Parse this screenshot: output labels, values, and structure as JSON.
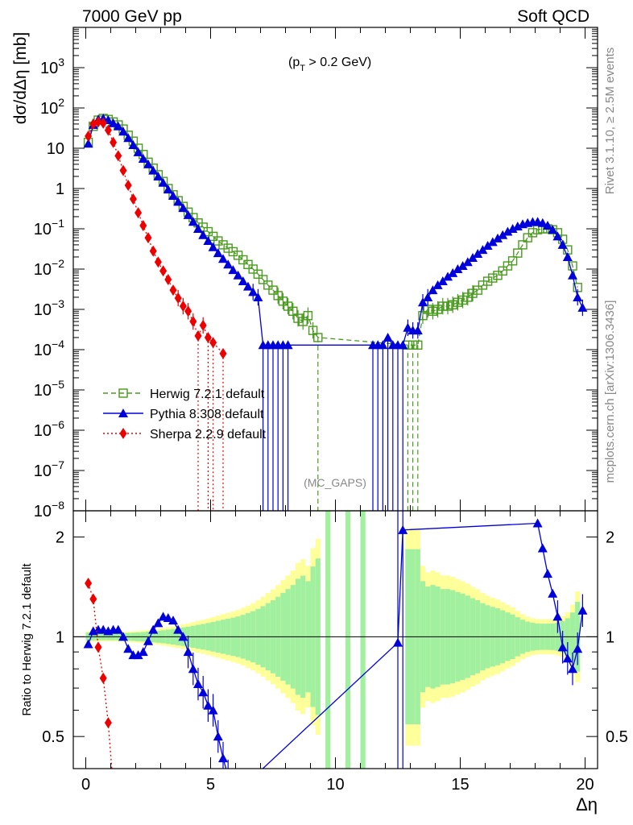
{
  "header": {
    "left": "7000 GeV pp",
    "right": "Soft QCD"
  },
  "side_labels": {
    "rivet": "Rivet 3.1.10, ≥ 2.5M events",
    "mcplots": "mcplots.cern.ch [arXiv:1306.3436]"
  },
  "annotations": {
    "cut_main": "(p",
    "cut_sub": "T",
    "cut_rest": " > 0.2 GeV)",
    "mc_gaps": "(MC_GAPS)"
  },
  "x_axis": {
    "label": "Δη",
    "ticks": [
      "0",
      "5",
      "10",
      "15",
      "20"
    ]
  },
  "top_y_axis": {
    "label": "dσ/dΔη [mb]",
    "ticks": [
      {
        "base": "10",
        "exp": "3"
      },
      {
        "base": "10",
        "exp": "2"
      },
      {
        "base": "10",
        "exp": ""
      },
      {
        "base": "1",
        "exp": ""
      },
      {
        "base": "10",
        "exp": "−1"
      },
      {
        "base": "10",
        "exp": "−2"
      },
      {
        "base": "10",
        "exp": "−3"
      },
      {
        "base": "10",
        "exp": "−4"
      },
      {
        "base": "10",
        "exp": "−5"
      },
      {
        "base": "10",
        "exp": "−6"
      },
      {
        "base": "10",
        "exp": "−7"
      },
      {
        "base": "10",
        "exp": "−8"
      }
    ]
  },
  "ratio_y_axis": {
    "label": "Ratio to Herwig 7.2.1 default",
    "ticks": [
      "2",
      "1",
      "0.5"
    ]
  },
  "legend": [
    {
      "name": "Herwig 7.2.1 default",
      "color": "#4a9a1f",
      "marker": "open-square",
      "line": "dashed"
    },
    {
      "name": "Pythia 8.308 default",
      "color": "#0000dd",
      "marker": "filled-triangle",
      "line": "solid"
    },
    {
      "name": "Sherpa 2.2.9 default",
      "color": "#ee0000",
      "marker": "filled-diamond",
      "line": "dotted"
    }
  ],
  "colors": {
    "herwig": "#4a9a1f",
    "pythia": "#0000dd",
    "sherpa": "#ee0000",
    "band_inner": "#a0f0a0",
    "band_outer": "#ffff9a",
    "grey_text": "#888888"
  },
  "chart_data": [
    {
      "type": "line",
      "panel": "main",
      "xlabel": "Δη",
      "ylabel": "dσ/dΔη [mb]",
      "xlim": [
        -0.5,
        20.5
      ],
      "ylim": [
        1e-08,
        10000
      ],
      "log_y": true,
      "legend_position": "lower-left",
      "series": [
        {
          "name": "Herwig 7.2.1 default",
          "points": [
            [
              0.1,
              14
            ],
            [
              0.3,
              35
            ],
            [
              0.5,
              50
            ],
            [
              0.7,
              55
            ],
            [
              0.9,
              52
            ],
            [
              1.1,
              45
            ],
            [
              1.3,
              38
            ],
            [
              1.5,
              30
            ],
            [
              1.7,
              21
            ],
            [
              1.9,
              15
            ],
            [
              2.1,
              10
            ],
            [
              2.3,
              7
            ],
            [
              2.5,
              4.5
            ],
            [
              2.7,
              3.2
            ],
            [
              2.9,
              2.2
            ],
            [
              3.1,
              1.5
            ],
            [
              3.3,
              1.0
            ],
            [
              3.5,
              0.7
            ],
            [
              3.7,
              0.5
            ],
            [
              3.9,
              0.36
            ],
            [
              4.1,
              0.26
            ],
            [
              4.3,
              0.19
            ],
            [
              4.5,
              0.14
            ],
            [
              4.7,
              0.11
            ],
            [
              4.9,
              0.085
            ],
            [
              5.1,
              0.065
            ],
            [
              5.3,
              0.05
            ],
            [
              5.5,
              0.04
            ],
            [
              5.7,
              0.033
            ],
            [
              5.9,
              0.027
            ],
            [
              6.1,
              0.022
            ],
            [
              6.3,
              0.017
            ],
            [
              6.5,
              0.013
            ],
            [
              6.7,
              0.01
            ],
            [
              6.9,
              0.0075
            ],
            [
              7.1,
              0.0055
            ],
            [
              7.3,
              0.004
            ],
            [
              7.5,
              0.003
            ],
            [
              7.7,
              0.0022
            ],
            [
              7.9,
              0.0016
            ],
            [
              8.1,
              0.0012
            ],
            [
              8.3,
              0.0009
            ],
            [
              8.5,
              0.0006
            ],
            [
              8.7,
              0.0005
            ],
            [
              8.9,
              0.0007
            ],
            [
              9.1,
              0.0003
            ],
            [
              9.3,
              0.0002
            ],
            [
              12.9,
              0.00013
            ],
            [
              13.1,
              0.00013
            ],
            [
              13.3,
              0.00013
            ],
            [
              13.5,
              0.0007
            ],
            [
              13.7,
              0.001
            ],
            [
              13.9,
              0.0009
            ],
            [
              14.1,
              0.001
            ],
            [
              14.3,
              0.0012
            ],
            [
              14.5,
              0.0012
            ],
            [
              14.7,
              0.0013
            ],
            [
              14.9,
              0.0015
            ],
            [
              15.1,
              0.0017
            ],
            [
              15.3,
              0.002
            ],
            [
              15.5,
              0.0025
            ],
            [
              15.7,
              0.003
            ],
            [
              15.9,
              0.004
            ],
            [
              16.1,
              0.005
            ],
            [
              16.3,
              0.006
            ],
            [
              16.5,
              0.007
            ],
            [
              16.7,
              0.009
            ],
            [
              16.9,
              0.012
            ],
            [
              17.1,
              0.016
            ],
            [
              17.3,
              0.025
            ],
            [
              17.5,
              0.04
            ],
            [
              17.7,
              0.06
            ],
            [
              17.9,
              0.08
            ],
            [
              18.1,
              0.095
            ],
            [
              18.3,
              0.1
            ],
            [
              18.5,
              0.1
            ],
            [
              18.7,
              0.095
            ],
            [
              18.9,
              0.08
            ],
            [
              19.1,
              0.055
            ],
            [
              19.3,
              0.03
            ],
            [
              19.5,
              0.012
            ],
            [
              19.7,
              0.0035
            ]
          ]
        },
        {
          "name": "Pythia 8.308 default",
          "points": [
            [
              0.1,
              13
            ],
            [
              0.3,
              38
            ],
            [
              0.5,
              52
            ],
            [
              0.7,
              55
            ],
            [
              0.9,
              50
            ],
            [
              1.1,
              42
            ],
            [
              1.3,
              35
            ],
            [
              1.5,
              26
            ],
            [
              1.7,
              18
            ],
            [
              1.9,
              12
            ],
            [
              2.1,
              8
            ],
            [
              2.3,
              5.5
            ],
            [
              2.5,
              4
            ],
            [
              2.7,
              2.8
            ],
            [
              2.9,
              2.0
            ],
            [
              3.1,
              1.4
            ],
            [
              3.3,
              0.95
            ],
            [
              3.5,
              0.66
            ],
            [
              3.7,
              0.47
            ],
            [
              3.9,
              0.33
            ],
            [
              4.1,
              0.22
            ],
            [
              4.3,
              0.15
            ],
            [
              4.5,
              0.1
            ],
            [
              4.7,
              0.07
            ],
            [
              4.9,
              0.05
            ],
            [
              5.1,
              0.035
            ],
            [
              5.3,
              0.025
            ],
            [
              5.5,
              0.018
            ],
            [
              5.7,
              0.013
            ],
            [
              5.9,
              0.0095
            ],
            [
              6.1,
              0.007
            ],
            [
              6.3,
              0.005
            ],
            [
              6.5,
              0.0037
            ],
            [
              6.7,
              0.0027
            ],
            [
              6.9,
              0.002
            ],
            [
              7.1,
              0.00013
            ],
            [
              7.3,
              0.00013
            ],
            [
              7.5,
              0.00013
            ],
            [
              7.7,
              0.00013
            ],
            [
              7.9,
              0.00013
            ],
            [
              8.1,
              0.00013
            ],
            [
              11.5,
              0.00013
            ],
            [
              11.7,
              0.00013
            ],
            [
              11.9,
              0.00013
            ],
            [
              12.1,
              0.0002
            ],
            [
              12.3,
              0.00013
            ],
            [
              12.5,
              0.00013
            ],
            [
              12.7,
              0.00013
            ],
            [
              12.9,
              0.00035
            ],
            [
              13.1,
              0.0003
            ],
            [
              13.3,
              0.0003
            ],
            [
              13.5,
              0.0015
            ],
            [
              13.7,
              0.002
            ],
            [
              13.9,
              0.003
            ],
            [
              14.1,
              0.004
            ],
            [
              14.3,
              0.005
            ],
            [
              14.5,
              0.0065
            ],
            [
              14.7,
              0.008
            ],
            [
              14.9,
              0.01
            ],
            [
              15.1,
              0.012
            ],
            [
              15.3,
              0.015
            ],
            [
              15.5,
              0.019
            ],
            [
              15.7,
              0.024
            ],
            [
              15.9,
              0.03
            ],
            [
              16.1,
              0.038
            ],
            [
              16.3,
              0.047
            ],
            [
              16.5,
              0.058
            ],
            [
              16.7,
              0.07
            ],
            [
              16.9,
              0.085
            ],
            [
              17.1,
              0.1
            ],
            [
              17.3,
              0.115
            ],
            [
              17.5,
              0.13
            ],
            [
              17.7,
              0.14
            ],
            [
              17.9,
              0.148
            ],
            [
              18.1,
              0.15
            ],
            [
              18.3,
              0.14
            ],
            [
              18.5,
              0.12
            ],
            [
              18.7,
              0.095
            ],
            [
              18.9,
              0.065
            ],
            [
              19.1,
              0.04
            ],
            [
              19.3,
              0.02
            ],
            [
              19.5,
              0.007
            ],
            [
              19.7,
              0.002
            ],
            [
              19.9,
              0.0011
            ]
          ]
        },
        {
          "name": "Sherpa 2.2.9 default",
          "points": [
            [
              0.1,
              20
            ],
            [
              0.3,
              40
            ],
            [
              0.5,
              45
            ],
            [
              0.7,
              42
            ],
            [
              0.9,
              28
            ],
            [
              1.1,
              14
            ],
            [
              1.3,
              6.5
            ],
            [
              1.5,
              2.8
            ],
            [
              1.7,
              1.2
            ],
            [
              1.9,
              0.55
            ],
            [
              2.1,
              0.25
            ],
            [
              2.3,
              0.12
            ],
            [
              2.5,
              0.06
            ],
            [
              2.7,
              0.028
            ],
            [
              2.9,
              0.015
            ],
            [
              3.1,
              0.009
            ],
            [
              3.3,
              0.0055
            ],
            [
              3.5,
              0.003
            ],
            [
              3.7,
              0.0019
            ],
            [
              3.9,
              0.0012
            ],
            [
              4.1,
              0.0009
            ],
            [
              4.3,
              0.0005
            ],
            [
              4.5,
              0.00022
            ],
            [
              4.7,
              0.0004
            ],
            [
              4.9,
              0.0002
            ],
            [
              5.1,
              0.00015
            ],
            [
              5.5,
              8e-05
            ]
          ]
        }
      ]
    },
    {
      "type": "line",
      "panel": "ratio",
      "xlabel": "Δη",
      "ylabel": "Ratio to Herwig 7.2.1 default",
      "xlim": [
        -0.5,
        20.5
      ],
      "ylim": [
        0.4,
        2.4
      ],
      "reference_line": 1,
      "series": [
        {
          "name": "Pythia 8.308 default",
          "points": [
            [
              0.1,
              0.95
            ],
            [
              0.3,
              1.04
            ],
            [
              0.5,
              1.05
            ],
            [
              0.7,
              1.05
            ],
            [
              0.9,
              1.04
            ],
            [
              1.1,
              1.05
            ],
            [
              1.3,
              1.05
            ],
            [
              1.5,
              1.0
            ],
            [
              1.7,
              0.92
            ],
            [
              1.9,
              0.88
            ],
            [
              2.1,
              0.88
            ],
            [
              2.3,
              0.9
            ],
            [
              2.5,
              0.97
            ],
            [
              2.7,
              1.05
            ],
            [
              2.9,
              1.1
            ],
            [
              3.1,
              1.15
            ],
            [
              3.3,
              1.14
            ],
            [
              3.5,
              1.12
            ],
            [
              3.7,
              1.05
            ],
            [
              3.9,
              1.0
            ],
            [
              4.1,
              0.9
            ],
            [
              4.3,
              0.8
            ],
            [
              4.5,
              0.72
            ],
            [
              4.7,
              0.68
            ],
            [
              4.9,
              0.62
            ],
            [
              5.1,
              0.6
            ],
            [
              5.3,
              0.5
            ],
            [
              5.5,
              0.43
            ],
            [
              5.7,
              0.38
            ],
            [
              5.9,
              0.33
            ],
            [
              12.5,
              0.96
            ],
            [
              12.7,
              2.1
            ],
            [
              18.1,
              2.2
            ],
            [
              18.3,
              1.85
            ],
            [
              18.5,
              1.55
            ],
            [
              18.7,
              1.35
            ],
            [
              18.9,
              1.15
            ],
            [
              19.1,
              0.93
            ],
            [
              19.3,
              0.86
            ],
            [
              19.5,
              0.8
            ],
            [
              19.7,
              0.92
            ],
            [
              19.9,
              1.2
            ]
          ]
        },
        {
          "name": "Sherpa 2.2.9 default",
          "points": [
            [
              0.1,
              1.45
            ],
            [
              0.3,
              1.3
            ],
            [
              0.5,
              0.93
            ],
            [
              0.7,
              0.75
            ],
            [
              0.9,
              0.55
            ],
            [
              1.1,
              0.35
            ]
          ]
        }
      ]
    }
  ]
}
